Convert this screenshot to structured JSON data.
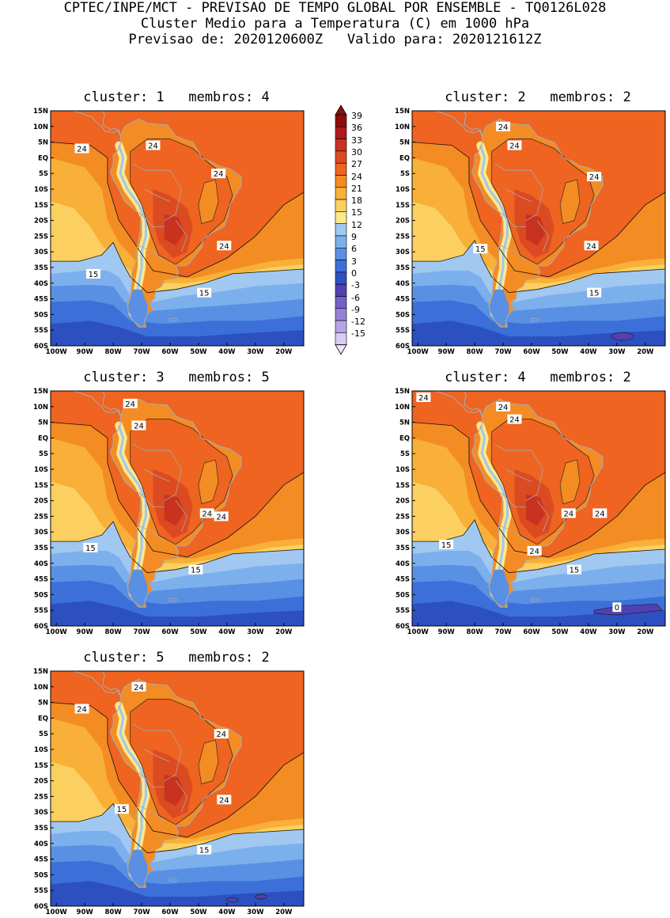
{
  "header": {
    "line1": "CPTEC/INPE/MCT - PREVISAO DE TEMPO GLOBAL POR ENSEMBLE - TQ0126L028",
    "line2": "Cluster Medio para a Temperatura (C) em 1000 hPa",
    "line3": "Previsao de: 2020120600Z   Valido para: 2020121612Z"
  },
  "lat_labels": [
    "15N",
    "10N",
    "5N",
    "EQ",
    "5S",
    "10S",
    "15S",
    "20S",
    "25S",
    "30S",
    "35S",
    "40S",
    "45S",
    "50S",
    "55S",
    "60S"
  ],
  "lon_labels": [
    "100W",
    "90W",
    "80W",
    "70W",
    "60W",
    "50W",
    "40W",
    "30W",
    "20W"
  ],
  "colorbar": {
    "ticks": [
      "39",
      "36",
      "33",
      "30",
      "27",
      "24",
      "21",
      "18",
      "15",
      "12",
      "9",
      "6",
      "3",
      "0",
      "-3",
      "-6",
      "-9",
      "-12",
      "-15"
    ],
    "colors": [
      "#8c0d0d",
      "#b01a1a",
      "#c8321e",
      "#dc4a22",
      "#ee6420",
      "#f48c24",
      "#f8b038",
      "#fcd060",
      "#fde88c",
      "#a0c8f0",
      "#7cb0ec",
      "#5a90e4",
      "#3c70d8",
      "#2c50c0",
      "#5040b4",
      "#7460c8",
      "#9880d8",
      "#b8a4e4",
      "#d8ccf0"
    ],
    "arrow_top": "#8c0d0d",
    "arrow_bottom": "#ece6f8"
  },
  "panels": [
    {
      "title": "cluster: 1   membros: 4",
      "labels": [
        {
          "text": "24",
          "lon": -66,
          "lat": 4
        },
        {
          "text": "24",
          "lon": -91,
          "lat": 3
        },
        {
          "text": "24",
          "lon": -43,
          "lat": -5
        },
        {
          "text": "24",
          "lon": -41,
          "lat": -28
        },
        {
          "text": "15",
          "lon": -87,
          "lat": -37
        },
        {
          "text": "15",
          "lon": -48,
          "lat": -43
        }
      ]
    },
    {
      "title": "cluster: 2   membros: 2",
      "labels": [
        {
          "text": "24",
          "lon": -70,
          "lat": 10
        },
        {
          "text": "24",
          "lon": -66,
          "lat": 4
        },
        {
          "text": "24",
          "lon": -38,
          "lat": -6
        },
        {
          "text": "24",
          "lon": -39,
          "lat": -28
        },
        {
          "text": "15",
          "lon": -78,
          "lat": -29
        },
        {
          "text": "15",
          "lon": -38,
          "lat": -43
        }
      ]
    },
    {
      "title": "cluster: 3   membros: 5",
      "labels": [
        {
          "text": "24",
          "lon": -74,
          "lat": 11
        },
        {
          "text": "24",
          "lon": -71,
          "lat": 4
        },
        {
          "text": "24",
          "lon": -47,
          "lat": -24
        },
        {
          "text": "24",
          "lon": -42,
          "lat": -25
        },
        {
          "text": "15",
          "lon": -88,
          "lat": -35
        },
        {
          "text": "15",
          "lon": -51,
          "lat": -42
        }
      ]
    },
    {
      "title": "cluster: 4   membros: 2",
      "labels": [
        {
          "text": "24",
          "lon": -98,
          "lat": 13
        },
        {
          "text": "24",
          "lon": -70,
          "lat": 10
        },
        {
          "text": "24",
          "lon": -66,
          "lat": 6
        },
        {
          "text": "24",
          "lon": -47,
          "lat": -24
        },
        {
          "text": "24",
          "lon": -36,
          "lat": -24
        },
        {
          "text": "24",
          "lon": -59,
          "lat": -36
        },
        {
          "text": "15",
          "lon": -90,
          "lat": -34
        },
        {
          "text": "15",
          "lon": -45,
          "lat": -42
        },
        {
          "text": "0",
          "lon": -30,
          "lat": -54
        }
      ]
    },
    {
      "title": "cluster: 5   membros: 2",
      "labels": [
        {
          "text": "24",
          "lon": -71,
          "lat": 10
        },
        {
          "text": "24",
          "lon": -91,
          "lat": 3
        },
        {
          "text": "24",
          "lon": -42,
          "lat": -5
        },
        {
          "text": "24",
          "lon": -41,
          "lat": -26
        },
        {
          "text": "15",
          "lon": -77,
          "lat": -29
        },
        {
          "text": "15",
          "lon": -48,
          "lat": -42
        }
      ]
    }
  ]
}
